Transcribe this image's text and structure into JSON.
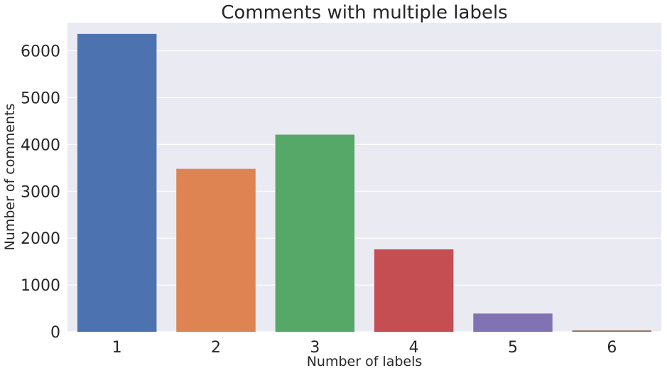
{
  "chart_data": {
    "type": "bar",
    "title": "Comments with multiple labels",
    "xlabel": "Number of labels",
    "ylabel": "Number of comments",
    "categories": [
      "1",
      "2",
      "3",
      "4",
      "5",
      "6"
    ],
    "values": [
      6360,
      3480,
      4210,
      1760,
      390,
      30
    ],
    "ylim": [
      0,
      6600
    ],
    "yticks": [
      0,
      1000,
      2000,
      3000,
      4000,
      5000,
      6000
    ],
    "ytick_labels": [
      "0",
      "1000",
      "2000",
      "3000",
      "4000",
      "5000",
      "6000"
    ],
    "grid": true,
    "colors": [
      "#4c72b0",
      "#dd8452",
      "#55a868",
      "#c44e52",
      "#8172b3",
      "#937860"
    ],
    "background_color": "#eaeaf2",
    "grid_color": "#ffffff"
  }
}
